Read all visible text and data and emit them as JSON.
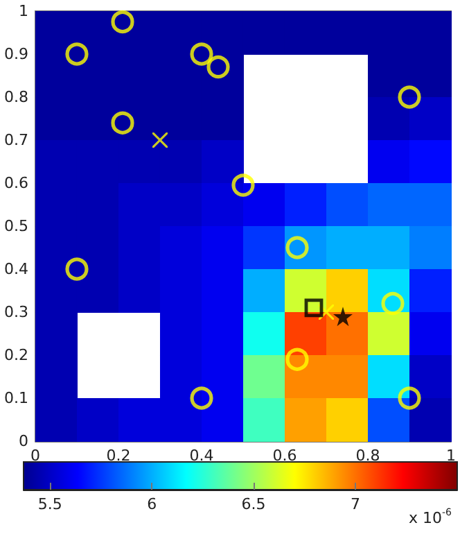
{
  "chart_data": {
    "type": "heatmap",
    "xlim": [
      0,
      1
    ],
    "xticks": [
      0,
      0.2,
      0.4,
      0.6,
      0.8,
      1
    ],
    "ylim": [
      0,
      1
    ],
    "yticks": [
      0,
      0.1,
      0.2,
      0.3,
      0.4,
      0.5,
      0.6,
      0.7,
      0.8,
      0.9,
      1
    ],
    "cells": [
      [
        5.4,
        5.4,
        5.4,
        5.4,
        5.4,
        5.4,
        5.4,
        5.4,
        5.4,
        5.4
      ],
      [
        5.4,
        5.4,
        5.4,
        5.4,
        5.4,
        null,
        null,
        null,
        5.4,
        5.4
      ],
      [
        5.4,
        5.4,
        5.4,
        5.4,
        5.4,
        null,
        null,
        null,
        5.45,
        5.5
      ],
      [
        5.45,
        5.45,
        5.45,
        5.45,
        5.5,
        null,
        null,
        null,
        5.6,
        5.65
      ],
      [
        5.45,
        5.45,
        5.5,
        5.5,
        5.55,
        5.6,
        5.7,
        5.8,
        5.85,
        5.85
      ],
      [
        5.45,
        5.45,
        5.5,
        5.55,
        5.6,
        5.75,
        5.95,
        6.0,
        6.0,
        5.9
      ],
      [
        5.45,
        5.45,
        5.5,
        5.55,
        5.6,
        6.0,
        6.6,
        6.8,
        6.1,
        5.7
      ],
      [
        5.45,
        null,
        null,
        5.55,
        5.6,
        6.2,
        7.1,
        7.0,
        6.6,
        5.6
      ],
      [
        5.45,
        null,
        null,
        5.55,
        5.6,
        6.4,
        6.95,
        6.95,
        6.1,
        5.5
      ],
      [
        5.45,
        5.5,
        5.55,
        5.55,
        5.6,
        6.3,
        6.9,
        6.8,
        5.8,
        5.45
      ]
    ],
    "clim": [
      5.37,
      7.5
    ],
    "cticks": [
      5.5,
      6,
      6.5,
      7
    ],
    "clabel": "x 10$^{-6}$",
    "series": [
      {
        "type": "scatter",
        "marker": "circle",
        "color": "#ffff00",
        "x": [
          0.1,
          0.21,
          0.4,
          0.44,
          0.9,
          0.21,
          0.5,
          0.63,
          0.1,
          0.86,
          0.63,
          0.4,
          0.9
        ],
        "values": [
          0.9,
          0.975,
          0.9,
          0.87,
          0.8,
          0.74,
          0.595,
          0.45,
          0.4,
          0.32,
          0.19,
          0.1,
          0.1
        ]
      },
      {
        "type": "scatter",
        "marker": "cross",
        "color": "#ffff00",
        "x": [
          0.3,
          0.7
        ],
        "values": [
          0.7,
          0.3
        ]
      },
      {
        "type": "scatter",
        "marker": "square",
        "color": "#000000",
        "x": [
          0.67
        ],
        "values": [
          0.31
        ]
      },
      {
        "type": "scatter",
        "marker": "star",
        "color": "#000000",
        "x": [
          0.74
        ],
        "values": [
          0.29
        ]
      }
    ],
    "grid": false
  }
}
